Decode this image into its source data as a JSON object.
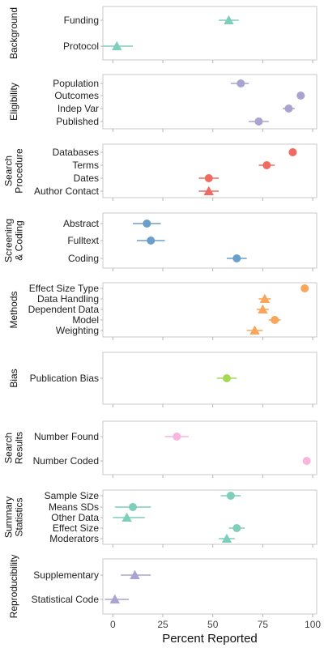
{
  "chart_data": {
    "type": "scatter",
    "xlabel": "Percent Reported",
    "xlim": [
      -5,
      102
    ],
    "xticks": [
      0,
      25,
      50,
      75,
      100
    ],
    "xtick_labels": [
      "0",
      "25",
      "50",
      "75",
      "100"
    ],
    "grid": false,
    "panels": [
      {
        "title": "Background",
        "color": "#7fcdbb",
        "items": [
          {
            "label": "Funding",
            "value": 58,
            "lo": 53,
            "hi": 63,
            "marker": "triangle"
          },
          {
            "label": "Protocol",
            "value": 2,
            "lo": -5,
            "hi": 10,
            "marker": "triangle"
          }
        ]
      },
      {
        "title": "Eligibility",
        "color": "#a8a3d1",
        "items": [
          {
            "label": "Population",
            "value": 64,
            "lo": 59,
            "hi": 68,
            "marker": "circle"
          },
          {
            "label": "Outcomes",
            "value": 94,
            "lo": 92,
            "hi": 96,
            "marker": "circle"
          },
          {
            "label": "Indep Var",
            "value": 88,
            "lo": 85,
            "hi": 91,
            "marker": "circle"
          },
          {
            "label": "Published",
            "value": 73,
            "lo": 68,
            "hi": 78,
            "marker": "circle"
          }
        ]
      },
      {
        "title": "Search Procedure",
        "color": "#f16a60",
        "items": [
          {
            "label": "Databases",
            "value": 90,
            "lo": 88,
            "hi": 92,
            "marker": "circle"
          },
          {
            "label": "Terms",
            "value": 77,
            "lo": 73,
            "hi": 81,
            "marker": "circle"
          },
          {
            "label": "Dates",
            "value": 48,
            "lo": 43,
            "hi": 53,
            "marker": "circle"
          },
          {
            "label": "Author Contact",
            "value": 48,
            "lo": 43,
            "hi": 53,
            "marker": "triangle"
          }
        ]
      },
      {
        "title": "Screening & Coding",
        "color": "#6b9fcb",
        "items": [
          {
            "label": "Abstract",
            "value": 17,
            "lo": 10,
            "hi": 24,
            "marker": "circle"
          },
          {
            "label": "Fulltext",
            "value": 19,
            "lo": 12,
            "hi": 26,
            "marker": "circle"
          },
          {
            "label": "Coding",
            "value": 62,
            "lo": 57,
            "hi": 67,
            "marker": "circle"
          }
        ]
      },
      {
        "title": "Methods",
        "color": "#fba55a",
        "items": [
          {
            "label": "Effect Size Type",
            "value": 96,
            "lo": 95,
            "hi": 97,
            "marker": "circle"
          },
          {
            "label": "Data Handling",
            "value": 76,
            "lo": 73,
            "hi": 79,
            "marker": "triangle"
          },
          {
            "label": "Dependent Data",
            "value": 75,
            "lo": 72,
            "hi": 78,
            "marker": "triangle"
          },
          {
            "label": "Model",
            "value": 81,
            "lo": 78,
            "hi": 84,
            "marker": "circle"
          },
          {
            "label": "Weighting",
            "value": 71,
            "lo": 67,
            "hi": 75,
            "marker": "triangle"
          }
        ]
      },
      {
        "title": "Bias",
        "color": "#a6d854",
        "items": [
          {
            "label": "Publication Bias",
            "value": 57,
            "lo": 52,
            "hi": 62,
            "marker": "circle"
          }
        ]
      },
      {
        "title": "Search Results",
        "color": "#f7b6de",
        "items": [
          {
            "label": "Number Found",
            "value": 32,
            "lo": 26,
            "hi": 38,
            "marker": "circle"
          },
          {
            "label": "Number Coded",
            "value": 97,
            "lo": 96,
            "hi": 98,
            "marker": "circle"
          }
        ]
      },
      {
        "title": "Summary Statistics",
        "color": "#7fcdbb",
        "items": [
          {
            "label": "Sample Size",
            "value": 59,
            "lo": 54,
            "hi": 64,
            "marker": "circle"
          },
          {
            "label": "Means SDs",
            "value": 10,
            "lo": 1,
            "hi": 19,
            "marker": "circle"
          },
          {
            "label": "Other Data",
            "value": 7,
            "lo": 0,
            "hi": 16,
            "marker": "triangle"
          },
          {
            "label": "Effect Size",
            "value": 62,
            "lo": 58,
            "hi": 66,
            "marker": "circle"
          },
          {
            "label": "Moderators",
            "value": 57,
            "lo": 53,
            "hi": 61,
            "marker": "triangle"
          }
        ]
      },
      {
        "title": "Reproducibility",
        "color": "#a8a3d1",
        "items": [
          {
            "label": "Supplementary",
            "value": 11,
            "lo": 4,
            "hi": 19,
            "marker": "triangle"
          },
          {
            "label": "Statistical Code",
            "value": 1,
            "lo": -4,
            "hi": 8,
            "marker": "triangle"
          }
        ]
      }
    ]
  }
}
